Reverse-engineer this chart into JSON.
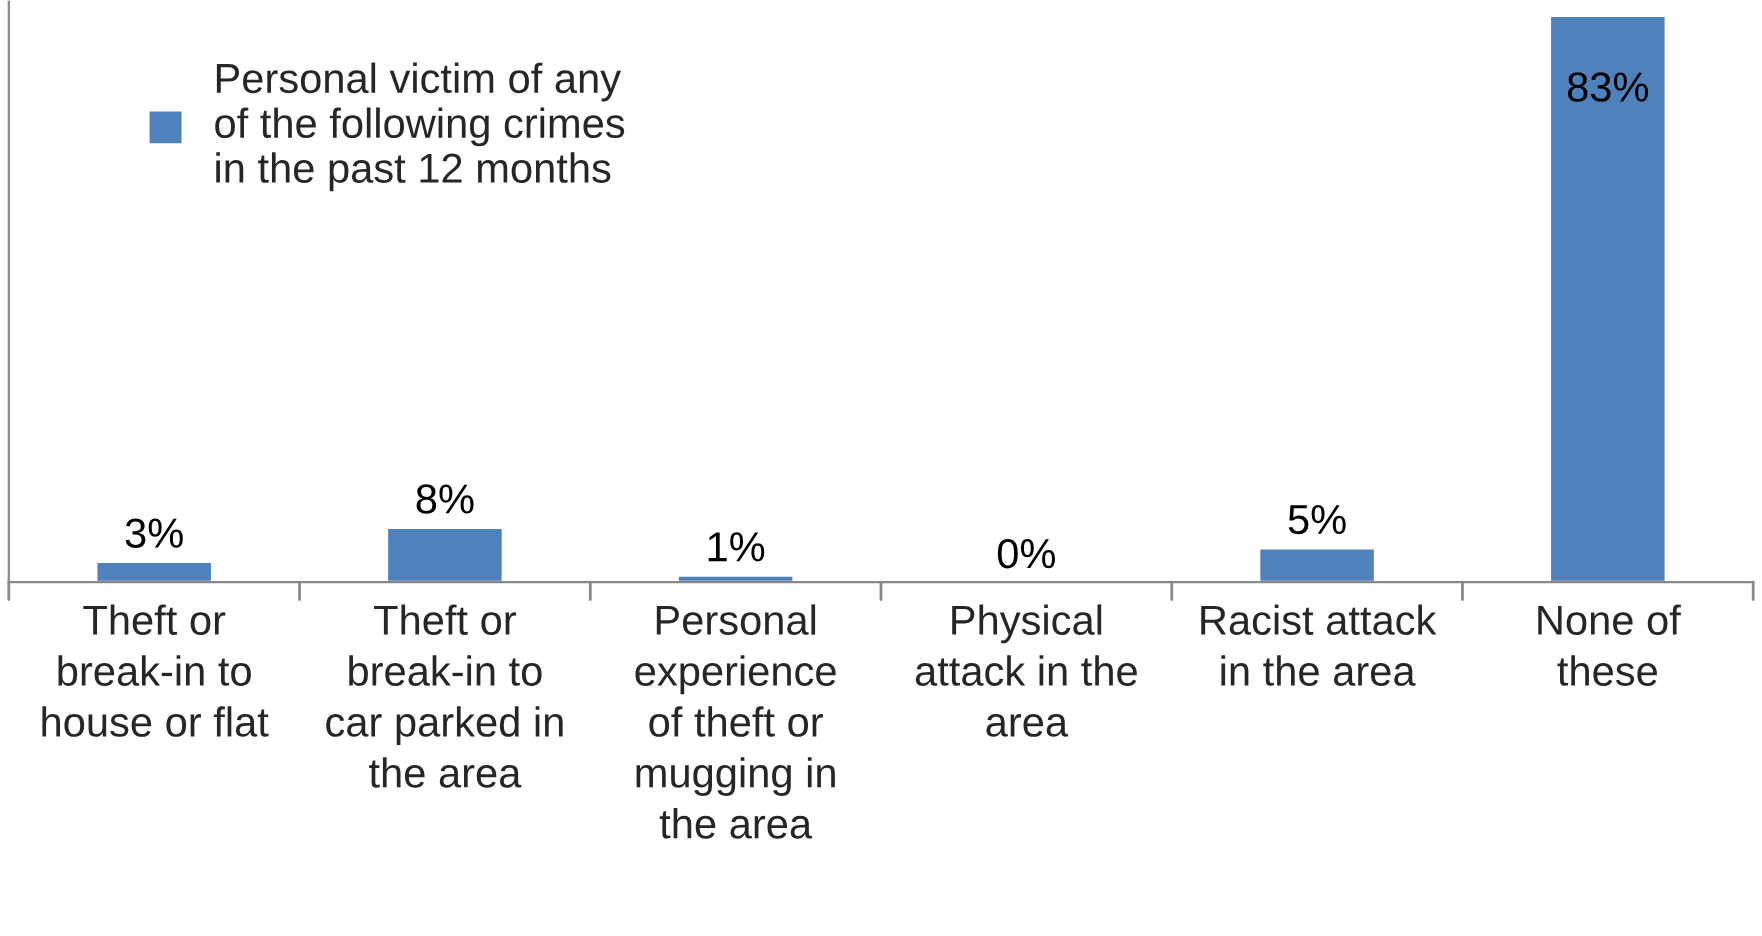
{
  "chart_data": {
    "type": "bar",
    "categories": [
      "Theft or\nbreak-in to\nhouse or flat",
      "Theft or\nbreak-in to\ncar parked in\nthe area",
      "Personal\nexperience\nof theft or\nmugging in\nthe area",
      "Physical\nattack in the\narea",
      "Racist attack\nin the area",
      "None of\nthese"
    ],
    "series": [
      {
        "name": "Personal victim of any\nof the following crimes\nin the past 12 months",
        "color": "#4f81bd",
        "values": [
          3,
          8,
          1,
          0,
          5,
          83
        ],
        "value_labels": [
          "3%",
          "8%",
          "1%",
          "0%",
          "5%",
          "83%"
        ]
      }
    ],
    "legend": "top left"
  }
}
